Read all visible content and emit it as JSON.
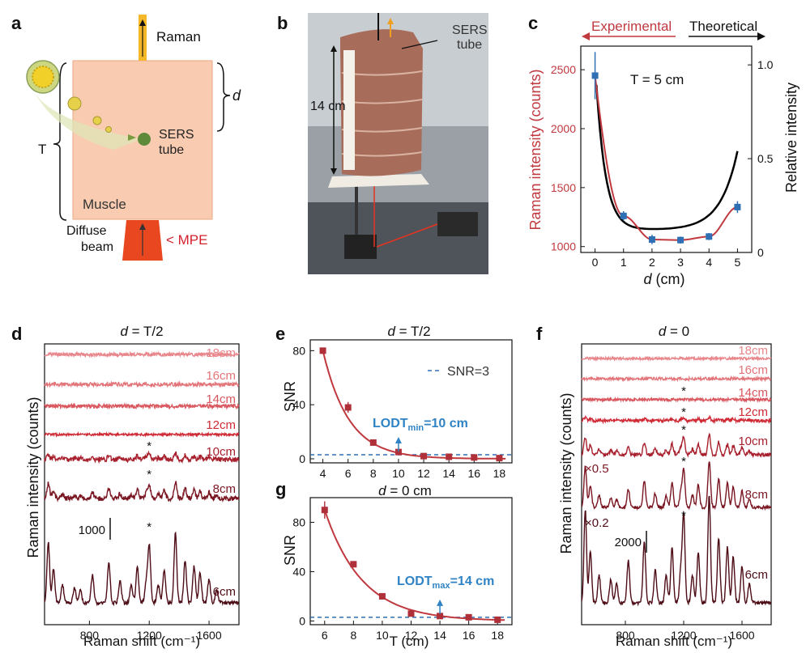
{
  "panel_labels": {
    "a": "a",
    "b": "b",
    "c": "c",
    "d": "d",
    "e": "e",
    "f": "f",
    "g": "g"
  },
  "panel_a": {
    "raman": "Raman",
    "d_symbol": "d",
    "t_symbol": "T",
    "sers_line1": "SERS",
    "sers_line2": "tube",
    "muscle": "Muscle",
    "beam_line1": "Diffuse",
    "beam_line2": "beam",
    "mpe": "< MPE"
  },
  "panel_b": {
    "sers_line1": "SERS",
    "sers_line2": "tube",
    "height": "14 cm"
  },
  "chart_data": [
    {
      "id": "c",
      "type": "line",
      "experimental_label": "Experimental",
      "theoretical_label": "Theoretical",
      "annotation": "T = 5 cm",
      "xlabel_var": "d",
      "xlabel_unit": " (cm)",
      "ylabel": "Raman intensity (counts)",
      "y2label": "Relative intensity",
      "x_ticks": [
        "0",
        "1",
        "2",
        "3",
        "4",
        "5"
      ],
      "y_ticks": [
        "1000",
        "1500",
        "2000",
        "2500"
      ],
      "y2_ticks": [
        "0",
        "0.5",
        "1.0"
      ],
      "xlim": [
        -0.5,
        5.5
      ],
      "ylim": [
        950,
        2700
      ],
      "y2lim": [
        0,
        1.1
      ],
      "experimental": {
        "x": [
          0,
          1,
          2,
          3,
          4,
          5
        ],
        "y": [
          2450,
          1260,
          1060,
          1055,
          1085,
          1335
        ],
        "err": [
          200,
          40,
          40,
          30,
          30,
          50
        ]
      },
      "colors": {
        "experimental": "#c0393f",
        "theoretical": "#000000",
        "points": "#2f6fb3"
      }
    },
    {
      "id": "d",
      "type": "line",
      "title_var": "d",
      "title_rest": " = T/2",
      "ylabel": "Raman intensity (counts)",
      "xlabel": "Raman shift (cm⁻¹)",
      "x_ticks": [
        "800",
        "1200",
        "1600"
      ],
      "xlim": [
        500,
        1800
      ],
      "scale_bar": "1000",
      "series": [
        {
          "name": "18cm",
          "color": "#e8868b"
        },
        {
          "name": "16cm",
          "color": "#e27479"
        },
        {
          "name": "14cm",
          "color": "#d9575e"
        },
        {
          "name": "12cm",
          "color": "#cf2a35"
        },
        {
          "name": "10cm",
          "color": "#a8202d"
        },
        {
          "name": "8cm",
          "color": "#7a1622"
        },
        {
          "name": "6cm",
          "color": "#4d0c16"
        }
      ],
      "asterisk": "*"
    },
    {
      "id": "e",
      "type": "scatter",
      "title_var": "d",
      "title_rest": " = T/2",
      "ylabel": "SNR",
      "legend": "SNR=3",
      "annotation_main": "LODT",
      "annotation_sub": "min",
      "annotation_rest": "=10 cm",
      "x": [
        4,
        6,
        8,
        10,
        12,
        14,
        16,
        18
      ],
      "y": [
        80,
        38,
        12,
        5,
        2,
        1.5,
        1,
        0.5
      ],
      "err": [
        2,
        4,
        1,
        1,
        0.5,
        0.5,
        0.5,
        0.5
      ],
      "x_ticks": [
        "4",
        "6",
        "8",
        "10",
        "12",
        "14",
        "16",
        "18"
      ],
      "y_ticks": [
        "0",
        "40",
        "80"
      ],
      "xlim": [
        3,
        19
      ],
      "ylim": [
        -3,
        88
      ]
    },
    {
      "id": "g",
      "type": "scatter",
      "title_var": "d",
      "title_rest": " = 0 cm",
      "ylabel": "SNR",
      "xlabel": "T (cm)",
      "annotation_main": "LODT",
      "annotation_sub": "max",
      "annotation_rest": "=14 cm",
      "x": [
        6,
        8,
        10,
        12,
        14,
        16,
        18
      ],
      "y": [
        90,
        46,
        20,
        6,
        4,
        3,
        1
      ],
      "err": [
        7,
        2,
        1,
        1,
        1,
        0.5,
        0.5
      ],
      "x_ticks": [
        "6",
        "8",
        "10",
        "12",
        "14",
        "16",
        "18"
      ],
      "y_ticks": [
        "0",
        "40",
        "80"
      ],
      "xlim": [
        5,
        19
      ],
      "ylim": [
        -3,
        100
      ]
    },
    {
      "id": "f",
      "type": "line",
      "title_var": "d",
      "title_rest": " = 0",
      "ylabel": "Raman intensity (counts)",
      "xlabel": "Raman shift (cm⁻¹)",
      "x_ticks": [
        "800",
        "1200",
        "1600"
      ],
      "xlim": [
        500,
        1800
      ],
      "scale_bar": "2000",
      "multipliers": [
        "×0.5",
        "×0.2"
      ],
      "series": [
        {
          "name": "18cm",
          "color": "#e8868b"
        },
        {
          "name": "16cm",
          "color": "#e27479"
        },
        {
          "name": "14cm",
          "color": "#d9575e"
        },
        {
          "name": "12cm",
          "color": "#cf2a35"
        },
        {
          "name": "10cm",
          "color": "#a8202d"
        },
        {
          "name": "8cm",
          "color": "#7a1622"
        },
        {
          "name": "6cm",
          "color": "#4d0c16"
        }
      ],
      "asterisk": "*"
    }
  ]
}
